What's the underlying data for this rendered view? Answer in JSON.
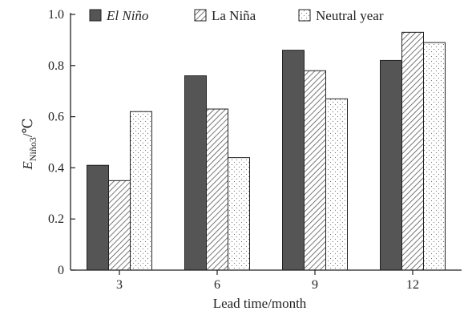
{
  "chart_data": {
    "type": "bar",
    "xlabel": "Lead time/month",
    "ylabel_main": "E",
    "ylabel_sub": "Niño3",
    "ylabel_unit": "/℃",
    "categories": [
      "3",
      "6",
      "9",
      "12"
    ],
    "ylim": [
      0,
      1.0
    ],
    "yticks": [
      "0",
      "0.2",
      "0.4",
      "0.6",
      "0.8",
      "1.0"
    ],
    "ytick_values": [
      0,
      0.2,
      0.4,
      0.6,
      0.8,
      1.0
    ],
    "legend_position": "top",
    "series": [
      {
        "name": "El Niño",
        "pattern": "solid-dark",
        "values": [
          0.41,
          0.76,
          0.86,
          0.82
        ]
      },
      {
        "name": "La Niña",
        "pattern": "hatched",
        "values": [
          0.35,
          0.63,
          0.78,
          0.93
        ]
      },
      {
        "name": "Neutral year",
        "pattern": "dotted",
        "values": [
          0.62,
          0.44,
          0.67,
          0.89
        ]
      }
    ],
    "colors": {
      "dark_fill": "#555555",
      "axis": "#222222"
    }
  }
}
